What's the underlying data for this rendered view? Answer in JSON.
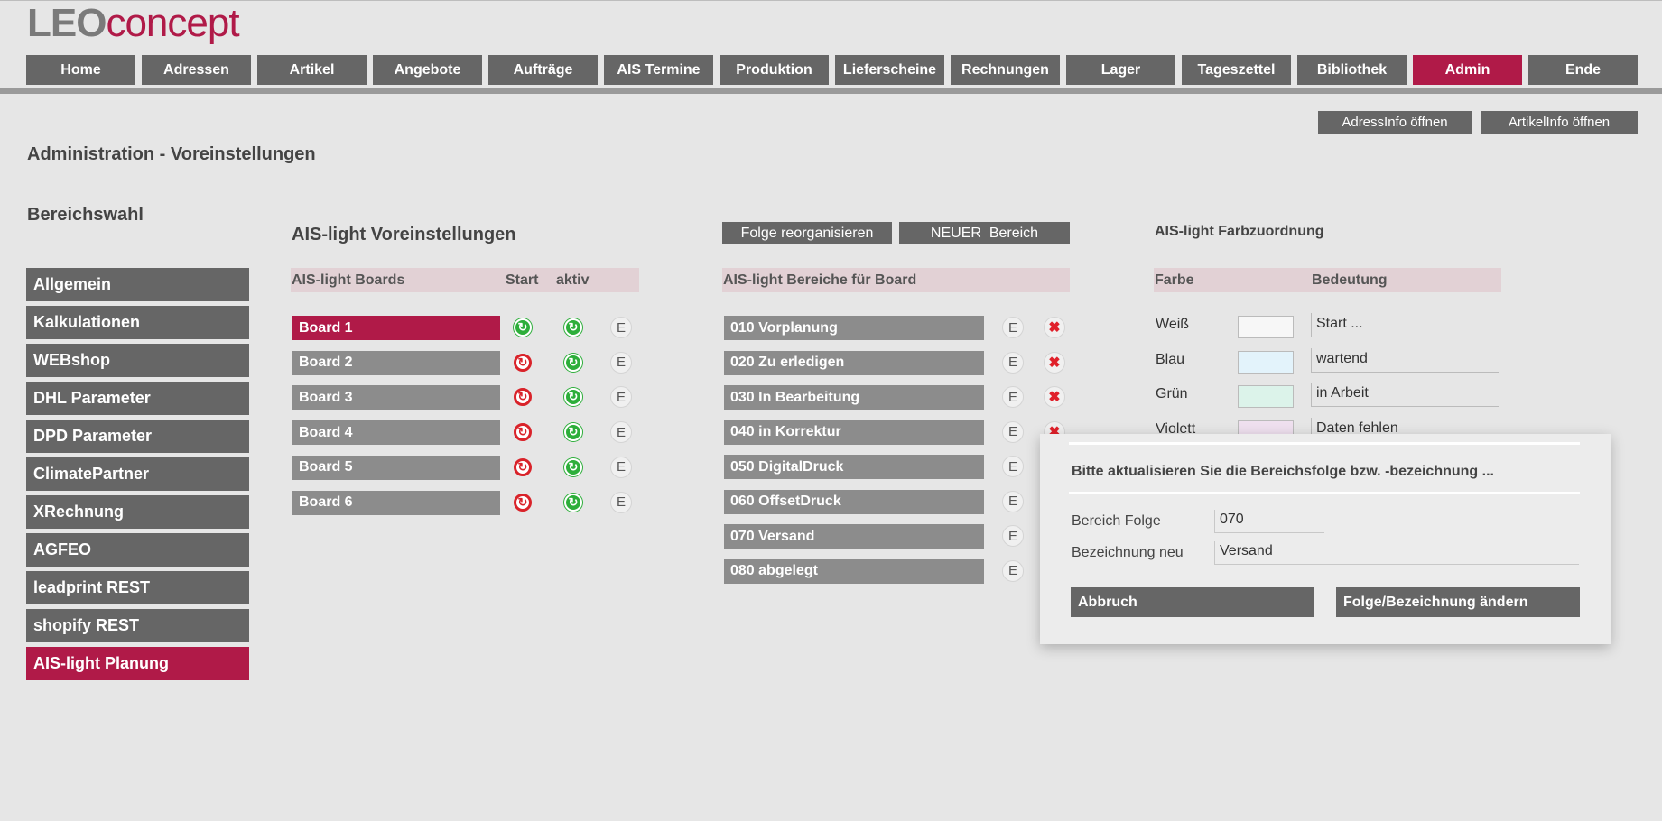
{
  "app": {
    "logo_leo": "LEO",
    "logo_concept": "concept",
    "accent_color": "#b01a48",
    "button_color": "#666666"
  },
  "nav": {
    "items": [
      "Home",
      "Adressen",
      "Artikel",
      "Angebote",
      "Aufträge",
      "AIS Termine",
      "Produktion",
      "Lieferscheine",
      "Rechnungen",
      "Lager",
      "Tageszettel",
      "Bibliothek",
      "Admin",
      "Ende"
    ],
    "active": "Admin"
  },
  "toolbar": {
    "adressinfo": "AdressInfo öffnen",
    "artikelinfo": "ArtikelInfo öffnen"
  },
  "page": {
    "title": "Administration - Voreinstellungen",
    "section_label": "Bereichswahl"
  },
  "sidebar": {
    "items": [
      "Allgemein",
      "Kalkulationen",
      "WEBshop",
      "DHL Parameter",
      "DPD Parameter",
      "ClimatePartner",
      "XRechnung",
      "AGFEO",
      "leadprint REST",
      "shopify REST",
      "AIS-light Planung"
    ],
    "active": "AIS-light Planung"
  },
  "boards": {
    "title": "AIS-light Voreinstellungen",
    "header": {
      "name": "AIS-light Boards",
      "start": "Start",
      "aktiv": "aktiv"
    },
    "edit_label": "E",
    "rows": [
      {
        "name": "Board 1",
        "start": "on",
        "aktiv": "on",
        "selected": true
      },
      {
        "name": "Board 2",
        "start": "off",
        "aktiv": "on",
        "selected": false
      },
      {
        "name": "Board 3",
        "start": "off",
        "aktiv": "on",
        "selected": false
      },
      {
        "name": "Board 4",
        "start": "off",
        "aktiv": "on",
        "selected": false
      },
      {
        "name": "Board 5",
        "start": "off",
        "aktiv": "on",
        "selected": false
      },
      {
        "name": "Board 6",
        "start": "off",
        "aktiv": "on",
        "selected": false
      }
    ]
  },
  "areas": {
    "reorg_button": "Folge reorganisieren",
    "new_button": "NEUER  Bereich",
    "header": "AIS-light Bereiche für Board",
    "edit_label": "E",
    "rows": [
      {
        "name": "010 Vorplanung",
        "deletable": true
      },
      {
        "name": "020 Zu erledigen",
        "deletable": true
      },
      {
        "name": "030 In Bearbeitung",
        "deletable": true
      },
      {
        "name": "040 in Korrektur",
        "deletable": true
      },
      {
        "name": "050 DigitalDruck",
        "deletable": false
      },
      {
        "name": "060 OffsetDruck",
        "deletable": false
      },
      {
        "name": "070 Versand",
        "deletable": false
      },
      {
        "name": "080 abgelegt",
        "deletable": false
      }
    ]
  },
  "colors": {
    "title": "AIS-light Farbzuordnung",
    "header": {
      "farbe": "Farbe",
      "bedeutung": "Bedeutung"
    },
    "rows": [
      {
        "color_name": "Weiß",
        "swatch": "#f7f7f7",
        "meaning": "Start ..."
      },
      {
        "color_name": "Blau",
        "swatch": "#e3f3fb",
        "meaning": "wartend"
      },
      {
        "color_name": "Grün",
        "swatch": "#dcf3ea",
        "meaning": "in Arbeit"
      },
      {
        "color_name": "Violett",
        "swatch": "#efe0ef",
        "meaning": "Daten fehlen"
      }
    ]
  },
  "popup": {
    "message": "Bitte aktualisieren Sie die Bereichsfolge bzw. -bezeichnung ...",
    "folge_label": "Bereich Folge",
    "folge_value": "070",
    "bezeichnung_label": "Bezeichnung neu",
    "bezeichnung_value": "Versand",
    "cancel_button": "Abbruch",
    "submit_button": "Folge/Bezeichnung ändern"
  }
}
